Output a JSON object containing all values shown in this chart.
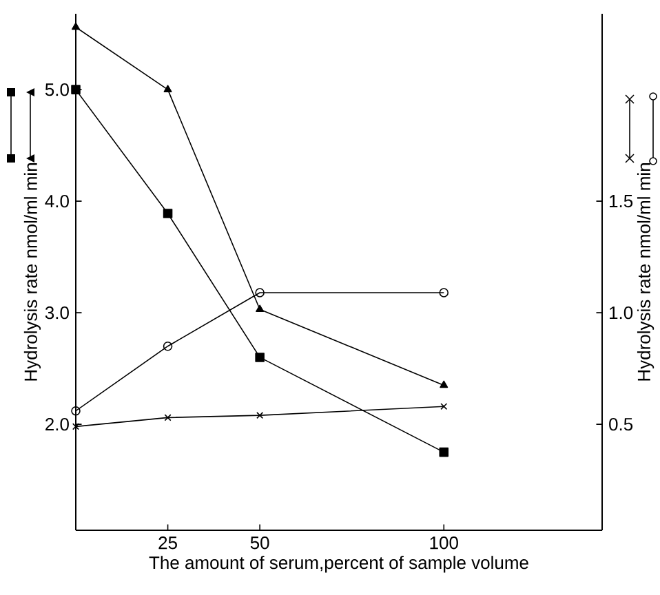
{
  "chart_data": {
    "type": "line",
    "xlabel": "The amount of serum,percent of sample volume",
    "ylabel": "Hydrolysis rate nmol/ml min",
    "y2label": "Hydrolysis rate nmol/ml min",
    "x": [
      0,
      25,
      50,
      100
    ],
    "xlim": [
      0,
      143
    ],
    "xticks": [
      25,
      50,
      100
    ],
    "ylim": [
      1.05,
      5.68
    ],
    "yticks": [
      {
        "value": 2.0,
        "label": "2.0"
      },
      {
        "value": 3.0,
        "label": "3.0"
      },
      {
        "value": 4.0,
        "label": "4.0"
      },
      {
        "value": 5.0,
        "label": "5.0"
      }
    ],
    "y2lim": [
      0.025,
      2.34
    ],
    "y2ticks": [
      {
        "value": 0.5,
        "label": "0.5"
      },
      {
        "value": 1.0,
        "label": "1.0"
      },
      {
        "value": 1.5,
        "label": "1.5"
      }
    ],
    "series": [
      {
        "color": "#000000",
        "marker": "triangle",
        "values": [
          5.56,
          5.0,
          3.03,
          2.35
        ]
      },
      {
        "color": "#000000",
        "marker": "square",
        "values": [
          5.0,
          3.89,
          2.6,
          1.75
        ]
      },
      {
        "color": "#000000",
        "marker": "circle",
        "axis": "y2",
        "values": [
          0.56,
          0.85,
          1.09,
          1.09
        ]
      },
      {
        "color": "#000000",
        "marker": "cross",
        "axis": "y2",
        "values": [
          0.49,
          0.53,
          0.54,
          0.58
        ]
      }
    ]
  }
}
